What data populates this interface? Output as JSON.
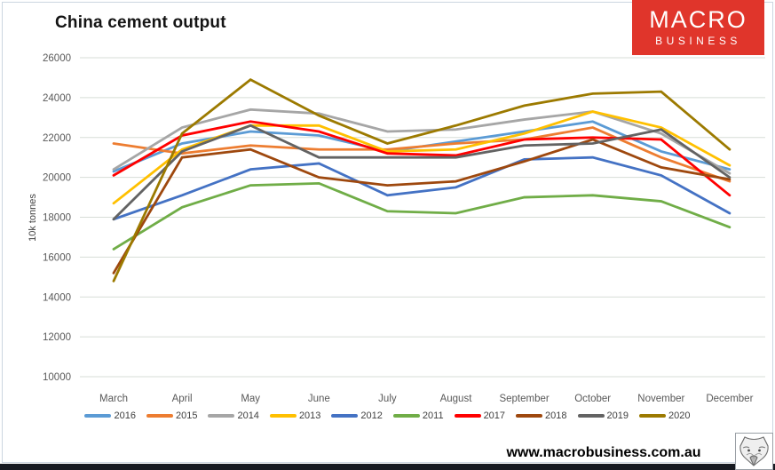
{
  "header": {
    "title": "China cement output"
  },
  "logo": {
    "line1": "MACRO",
    "line2": "BUSINESS",
    "bg_color": "#e0352b"
  },
  "footer": {
    "website": "www.macrobusiness.com.au"
  },
  "chart_data": {
    "type": "line",
    "title": "China cement output",
    "xlabel": "",
    "ylabel": "10k tonnes",
    "categories": [
      "March",
      "April",
      "May",
      "June",
      "July",
      "August",
      "September",
      "October",
      "November",
      "December"
    ],
    "ylim": [
      10000,
      26000
    ],
    "ytick_step": 2000,
    "grid": true,
    "legend_position": "bottom",
    "axis_text_color": "#595959",
    "gridline_color": "#d7ddd7",
    "series": [
      {
        "name": "2016",
        "color": "#5B9BD5",
        "values": [
          20300,
          21700,
          22300,
          22100,
          21300,
          21800,
          22300,
          22800,
          21300,
          20400
        ]
      },
      {
        "name": "2015",
        "color": "#ED7D31",
        "values": [
          21700,
          21200,
          21600,
          21400,
          21400,
          21700,
          21900,
          22500,
          21000,
          19800
        ]
      },
      {
        "name": "2014",
        "color": "#A6A6A6",
        "values": [
          20400,
          22500,
          23400,
          23200,
          22300,
          22400,
          22900,
          23300,
          22200,
          20200
        ]
      },
      {
        "name": "2013",
        "color": "#FFC000",
        "values": [
          18700,
          21400,
          22600,
          22600,
          21300,
          21400,
          22200,
          23300,
          22500,
          20600
        ]
      },
      {
        "name": "2012",
        "color": "#4472C4",
        "values": [
          17900,
          19100,
          20400,
          20700,
          19100,
          19500,
          20900,
          21000,
          20100,
          18200
        ]
      },
      {
        "name": "2011",
        "color": "#70AD47",
        "values": [
          16400,
          18500,
          19600,
          19700,
          18300,
          18200,
          19000,
          19100,
          18800,
          17500
        ]
      },
      {
        "name": "2017",
        "color": "#FF0000",
        "values": [
          20100,
          22100,
          22800,
          22300,
          21200,
          21100,
          21900,
          22000,
          21900,
          19100
        ]
      },
      {
        "name": "2018",
        "color": "#9E480E",
        "values": [
          15200,
          21000,
          21400,
          20000,
          19600,
          19800,
          20800,
          21900,
          20500,
          19900
        ]
      },
      {
        "name": "2019",
        "color": "#636363",
        "values": [
          17900,
          21300,
          22600,
          21000,
          21000,
          21000,
          21600,
          21700,
          22400,
          20000
        ]
      },
      {
        "name": "2020",
        "color": "#9C7A00",
        "values": [
          14800,
          22200,
          24900,
          23100,
          21700,
          22600,
          23600,
          24200,
          24300,
          21400
        ]
      }
    ]
  }
}
